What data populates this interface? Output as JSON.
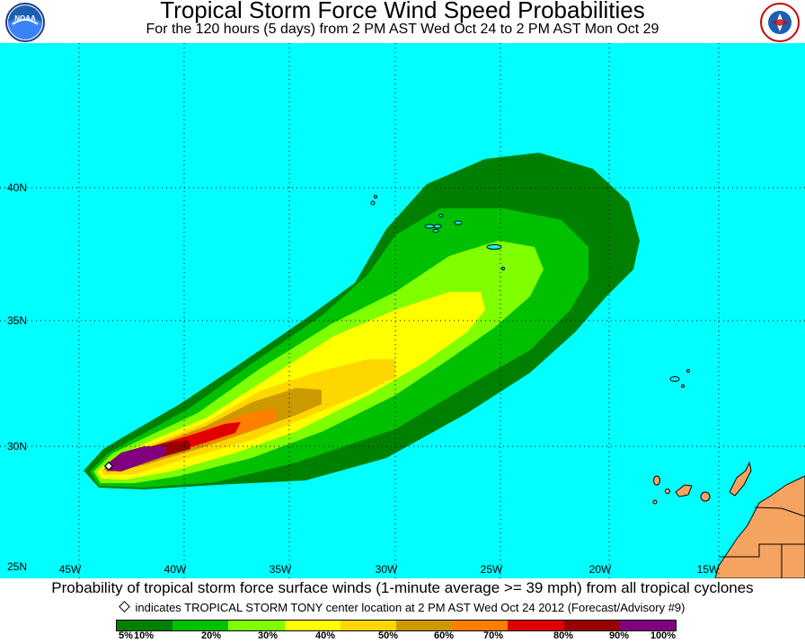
{
  "header": {
    "title": "Tropical Storm Force Wind Speed Probabilities",
    "subtitle": "For the 120 hours (5 days) from 2 PM AST Wed Oct 24 to 2 PM AST Mon Oct 29"
  },
  "logos": {
    "left": "NOAA",
    "right": "NATIONAL WEATHER SERVICE"
  },
  "map": {
    "lat_labels": [
      "40N",
      "35N",
      "30N",
      "25N"
    ],
    "lon_labels": [
      "45W",
      "40W",
      "35W",
      "30W",
      "25W",
      "20W",
      "15W"
    ],
    "colors": {
      "ocean": "#00ffff",
      "land": "#f4a460"
    }
  },
  "footer": {
    "caption": "Probability of tropical storm force surface winds (1-minute average >= 39 mph) from all tropical cyclones",
    "storm_note": "indicates TROPICAL STORM TONY center location at 2 PM AST Wed Oct 24 2012 (Forecast/Advisory #9)"
  },
  "legend": {
    "colors": [
      "#008000",
      "#00c000",
      "#80ff00",
      "#ffff00",
      "#ffd700",
      "#cc9900",
      "#ff8000",
      "#e00000",
      "#990000",
      "#800080"
    ],
    "labels": [
      "5%",
      "10%",
      "20%",
      "30%",
      "40%",
      "50%",
      "60%",
      "70%",
      "80%",
      "90%",
      "100%"
    ]
  }
}
